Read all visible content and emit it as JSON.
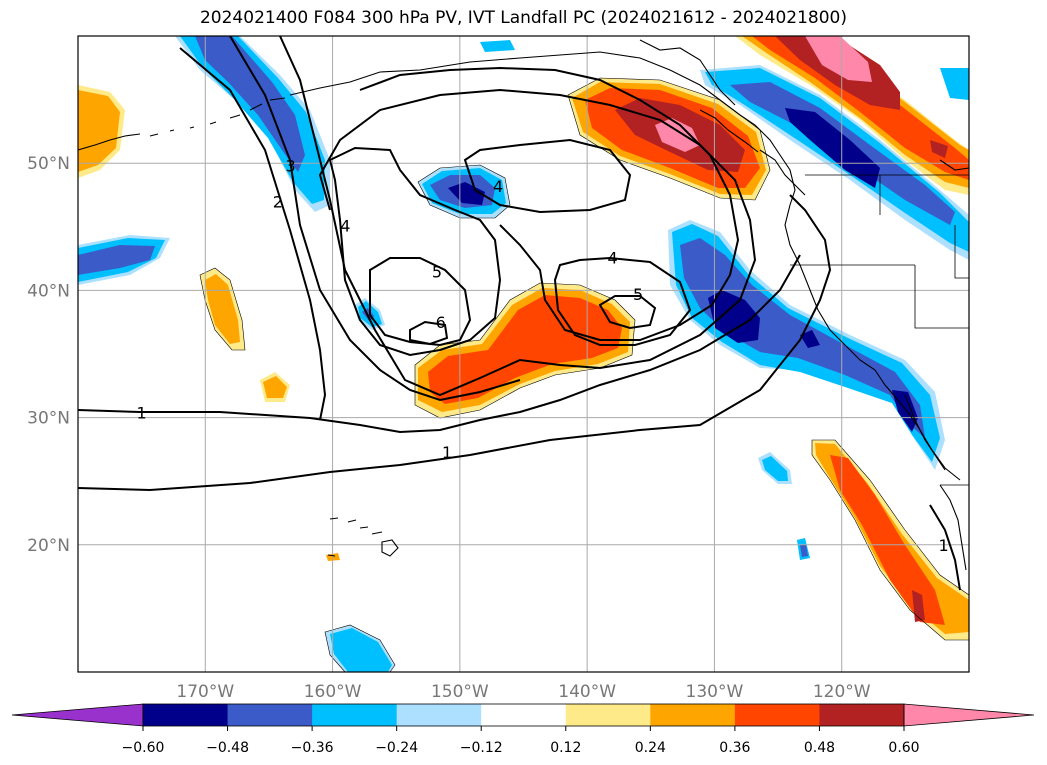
{
  "title": "2024021400 F084 300 hPa PV, IVT Landfall PC (2024021612 - 2024021800)",
  "lon_labels": [
    {
      "lon": -170,
      "text": "170°W"
    },
    {
      "lon": -160,
      "text": "160°W"
    },
    {
      "lon": -150,
      "text": "150°W"
    },
    {
      "lon": -140,
      "text": "140°W"
    },
    {
      "lon": -130,
      "text": "130°W"
    },
    {
      "lon": -120,
      "text": "120°W"
    }
  ],
  "lat_labels": [
    {
      "lat": 50,
      "text": "50°N"
    },
    {
      "lat": 40,
      "text": "40°N"
    },
    {
      "lat": 30,
      "text": "30°N"
    },
    {
      "lat": 20,
      "text": "20°N"
    }
  ],
  "extent": {
    "lon_min": -180,
    "lon_max": -110,
    "lat_min": 10,
    "lat_max": 60
  },
  "colorbar": {
    "levels": [
      "−0.60",
      "−0.48",
      "−0.36",
      "−0.24",
      "−0.12",
      "0.12",
      "0.24",
      "0.36",
      "0.48",
      "0.60"
    ],
    "colors": [
      "#9932CC",
      "#00008B",
      "#3A5BC8",
      "#00BFFF",
      "#ADE0FF",
      "#FFFFFF",
      "#FFEA8A",
      "#FFA500",
      "#FF4500",
      "#B22222",
      "#FF88AA"
    ]
  },
  "contour_labels": [
    {
      "text": "4",
      "lon": -147,
      "lat": 48.2
    },
    {
      "text": "4",
      "lon": -138,
      "lat": 42.6
    },
    {
      "text": "5",
      "lon": -151.8,
      "lat": 41.5
    },
    {
      "text": "5",
      "lon": -136,
      "lat": 39.7
    },
    {
      "text": "6",
      "lon": -151.5,
      "lat": 37.5
    },
    {
      "text": "4",
      "lon": -159,
      "lat": 45.1
    },
    {
      "text": "3",
      "lon": -163.3,
      "lat": 49.8
    },
    {
      "text": "2",
      "lon": -164.3,
      "lat": 47.0
    },
    {
      "text": "1",
      "lon": -175,
      "lat": 30.4
    },
    {
      "text": "1",
      "lon": -151,
      "lat": 27.3
    },
    {
      "text": "1",
      "lon": -112,
      "lat": 20.0
    }
  ]
}
